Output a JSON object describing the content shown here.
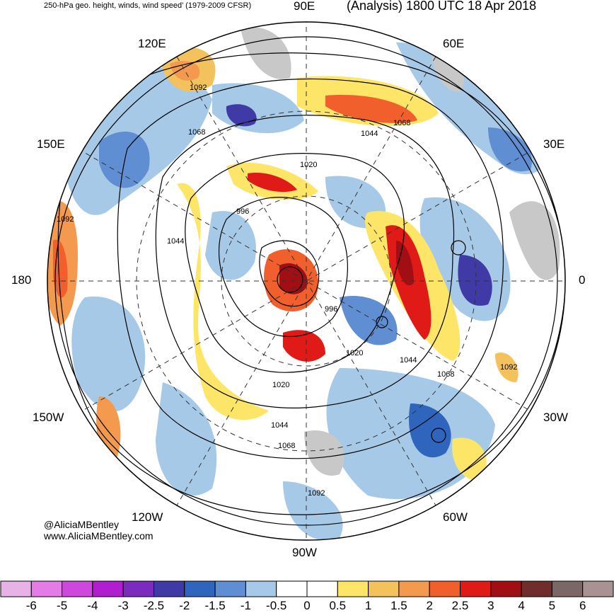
{
  "header": {
    "left": "250-hPa geo. height, winds, wind speed’ (1979-2009 CFSR)",
    "right": "(Analysis) 1800 UTC 18 Apr 2018"
  },
  "longitudes": {
    "top": "90E",
    "upper_left": "120E",
    "upper_right": "60E",
    "left_upper": "150E",
    "right_upper": "30E",
    "left": "180",
    "right": "0",
    "left_lower": "150W",
    "right_lower": "30W",
    "lower_left": "120W",
    "lower_right": "60W",
    "bottom": "90W"
  },
  "contour_labels": [
    "1092",
    "1068",
    "1044",
    "1020",
    "996",
    "996",
    "1020",
    "1044",
    "1068",
    "1092",
    "1092",
    "1068",
    "1044",
    "1020",
    "1044",
    "1068",
    "1092"
  ],
  "credits": {
    "handle": "@AliciaMBentley",
    "website": "www.AliciaMBentley.com"
  },
  "colorbar": {
    "colors": [
      "#e7b3e7",
      "#e47be6",
      "#cf48dd",
      "#b01ed0",
      "#7b2bbd",
      "#3f3aa6",
      "#2f65bd",
      "#5f8ed3",
      "#a7c9e8",
      "#ffffff",
      "#ffffff",
      "#fde667",
      "#f4c25c",
      "#f39a4f",
      "#f1602c",
      "#e01a17",
      "#a10f14",
      "#6f2e2b",
      "#7b6766",
      "#a89392"
    ],
    "labels": [
      "-6",
      "-5",
      "-4",
      "-3",
      "-2.5",
      "-2",
      "-1.5",
      "-1",
      "-0.5",
      "0",
      "0.5",
      "1",
      "1.5",
      "2",
      "2.5",
      "3",
      "4",
      "5",
      "6"
    ]
  }
}
